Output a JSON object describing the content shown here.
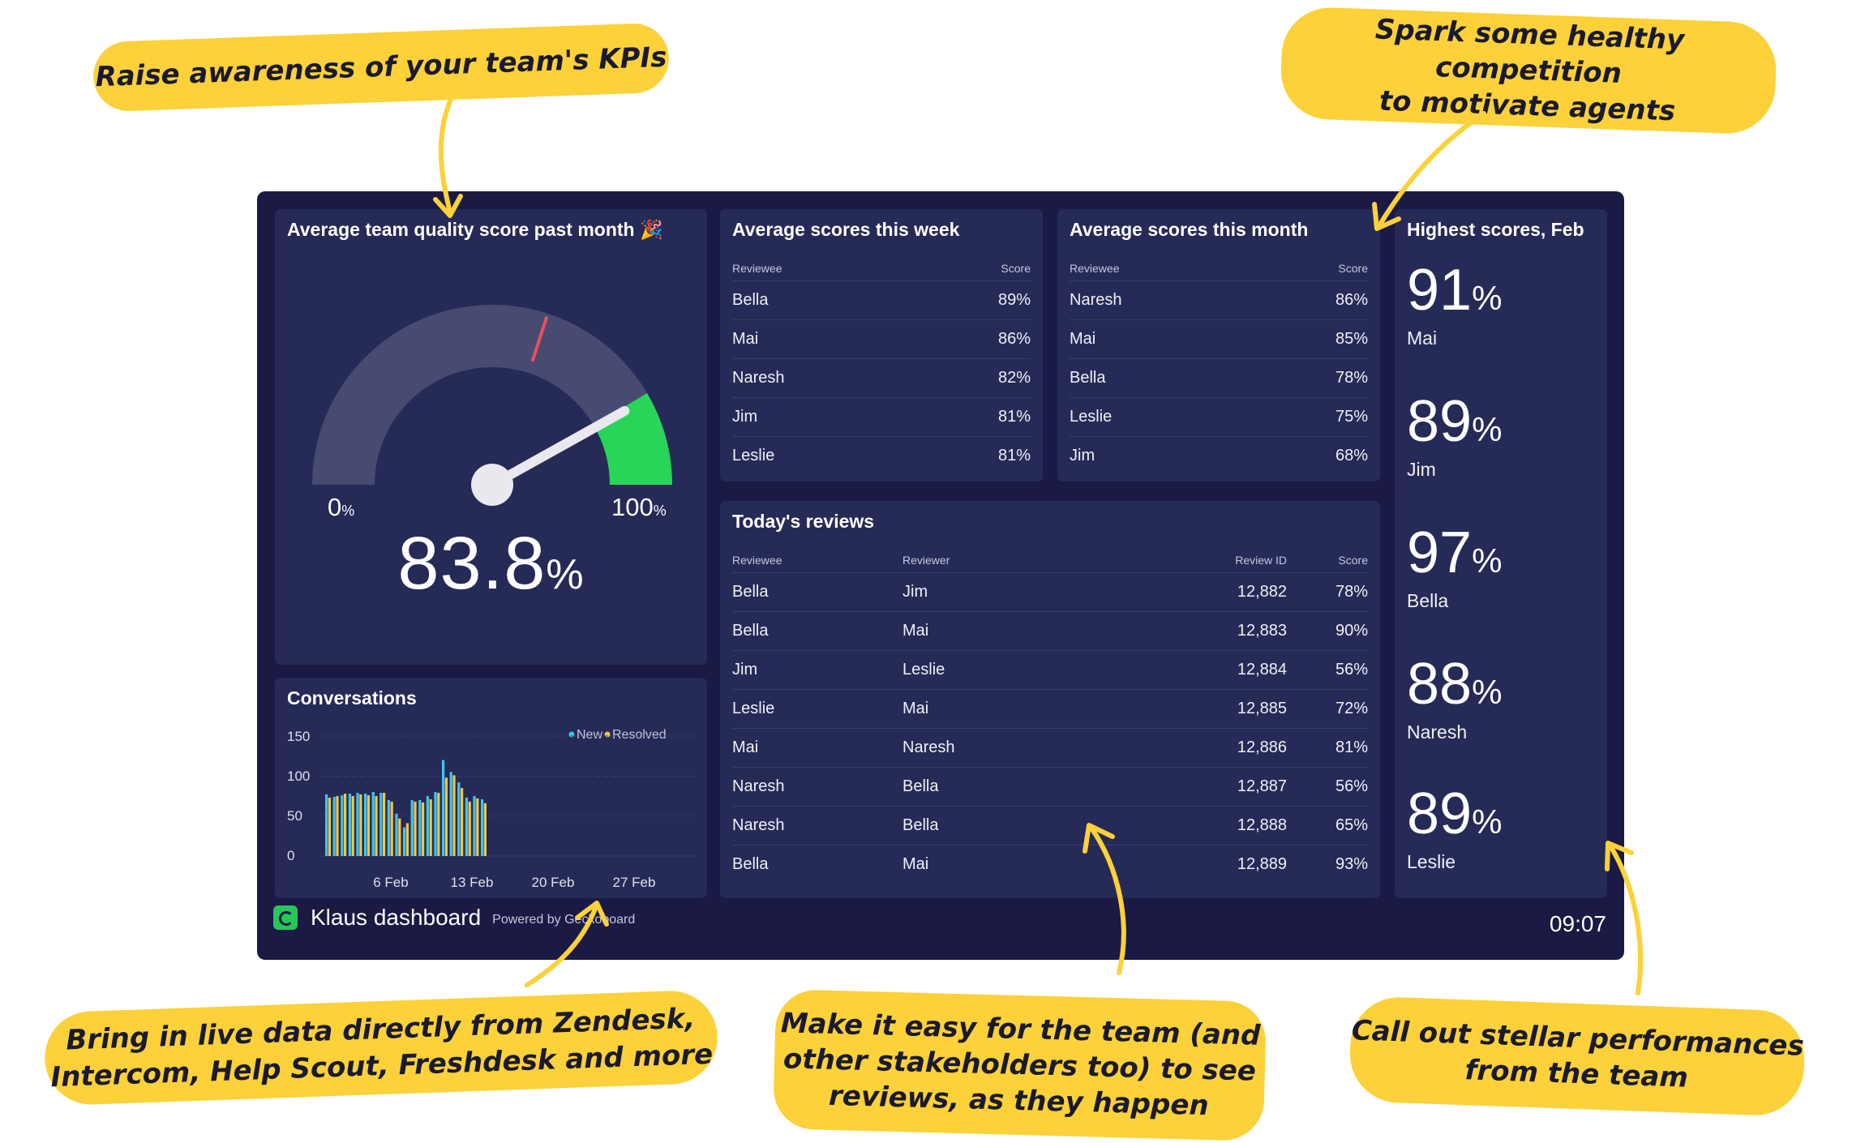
{
  "callouts": {
    "kpis": "Raise awareness of your team's KPIs",
    "competition_1": "Spark some healthy competition",
    "competition_2": "to motivate agents",
    "live_data_1": "Bring in live data directly from Zendesk,",
    "live_data_2": "Intercom, Help Scout, Freshdesk and more",
    "reviews_1": "Make it easy for the team (and",
    "reviews_2": "other stakeholders too) to see",
    "reviews_3": "reviews, as they happen",
    "stellar_1": "Call out stellar performances",
    "stellar_2": "from the team"
  },
  "gauge": {
    "title": "Average team quality score past month 🎉",
    "min_label": "0",
    "max_label": "100",
    "unit": "%",
    "value": "83.8",
    "value_num": 83.8,
    "red_marker": 60,
    "green_from": 83,
    "colors": {
      "track": "#474b72",
      "green": "#27d558",
      "red": "#e8505b",
      "needle": "#e8e8ee"
    }
  },
  "week": {
    "title": "Average scores this week",
    "col_reviewee": "Reviewee",
    "col_score": "Score",
    "rows": [
      {
        "name": "Bella",
        "score": "89%"
      },
      {
        "name": "Mai",
        "score": "86%"
      },
      {
        "name": "Naresh",
        "score": "82%"
      },
      {
        "name": "Jim",
        "score": "81%"
      },
      {
        "name": "Leslie",
        "score": "81%"
      }
    ]
  },
  "month": {
    "title": "Average scores this month",
    "col_reviewee": "Reviewee",
    "col_score": "Score",
    "rows": [
      {
        "name": "Naresh",
        "score": "86%"
      },
      {
        "name": "Mai",
        "score": "85%"
      },
      {
        "name": "Bella",
        "score": "78%"
      },
      {
        "name": "Leslie",
        "score": "75%"
      },
      {
        "name": "Jim",
        "score": "68%"
      }
    ]
  },
  "highest": {
    "title": "Highest scores, Feb",
    "unit": "%",
    "items": [
      {
        "value": "91",
        "name": "Mai"
      },
      {
        "value": "89",
        "name": "Jim"
      },
      {
        "value": "97",
        "name": "Bella"
      },
      {
        "value": "88",
        "name": "Naresh"
      },
      {
        "value": "89",
        "name": "Leslie"
      }
    ]
  },
  "today": {
    "title": "Today's reviews",
    "col_reviewee": "Reviewee",
    "col_reviewer": "Reviewer",
    "col_id": "Review ID",
    "col_score": "Score",
    "rows": [
      {
        "reviewee": "Bella",
        "reviewer": "Jim",
        "id": "12,882",
        "score": "78%"
      },
      {
        "reviewee": "Bella",
        "reviewer": "Mai",
        "id": "12,883",
        "score": "90%"
      },
      {
        "reviewee": "Jim",
        "reviewer": "Leslie",
        "id": "12,884",
        "score": "56%"
      },
      {
        "reviewee": "Leslie",
        "reviewer": "Mai",
        "id": "12,885",
        "score": "72%"
      },
      {
        "reviewee": "Mai",
        "reviewer": "Naresh",
        "id": "12,886",
        "score": "81%"
      },
      {
        "reviewee": "Naresh",
        "reviewer": "Bella",
        "id": "12,887",
        "score": "56%"
      },
      {
        "reviewee": "Naresh",
        "reviewer": "Bella",
        "id": "12,888",
        "score": "65%"
      },
      {
        "reviewee": "Bella",
        "reviewer": "Mai",
        "id": "12,889",
        "score": "93%"
      }
    ]
  },
  "conversations": {
    "title": "Conversations",
    "legend_new": "New",
    "legend_resolved": "Resolved",
    "colors": {
      "new": "#3ec5f0",
      "resolved": "#f4c542"
    },
    "y_ticks": [
      "150",
      "100",
      "50",
      "0"
    ],
    "x_ticks": [
      "6 Feb",
      "13 Feb",
      "20 Feb",
      "27 Feb"
    ]
  },
  "chart_data": {
    "type": "bar",
    "title": "Conversations",
    "ylim": [
      0,
      150
    ],
    "yticks": [
      0,
      50,
      100,
      150
    ],
    "xticks": [
      "6 Feb",
      "13 Feb",
      "20 Feb",
      "27 Feb"
    ],
    "grid": true,
    "legend": "top-right",
    "categories": [
      "1",
      "2",
      "3",
      "4",
      "5",
      "6",
      "7",
      "8",
      "9",
      "10",
      "11",
      "12",
      "13",
      "14",
      "15",
      "16",
      "17",
      "18",
      "19",
      "20",
      "21"
    ],
    "series": [
      {
        "name": "New",
        "values": [
          77,
          74,
          76,
          78,
          79,
          78,
          80,
          79,
          70,
          53,
          36,
          70,
          70,
          75,
          80,
          120,
          105,
          92,
          73,
          75,
          71
        ]
      },
      {
        "name": "Resolved",
        "values": [
          73,
          75,
          78,
          75,
          77,
          76,
          75,
          79,
          68,
          47,
          41,
          68,
          67,
          71,
          79,
          98,
          101,
          85,
          68,
          72,
          66
        ]
      }
    ]
  },
  "footer": {
    "brand": "Klaus dashboard",
    "powered": "Powered by Geckoboard",
    "time": "09:07"
  }
}
